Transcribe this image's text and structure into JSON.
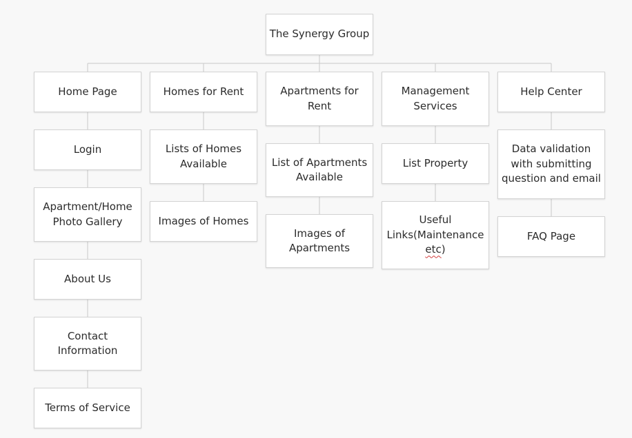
{
  "root": {
    "label": "The Synergy Group"
  },
  "columns": [
    {
      "header": "Home Page",
      "children": [
        "Login",
        "Apartment/Home\nPhoto Gallery",
        "About Us",
        "Contact\nInformation",
        "Terms of Service"
      ]
    },
    {
      "header": "Homes for Rent",
      "children": [
        "Lists of Homes\nAvailable",
        "Images of Homes"
      ]
    },
    {
      "header": "Apartments for\nRent",
      "children": [
        "List of Apartments\nAvailable",
        "Images of\nApartments"
      ]
    },
    {
      "header": "Management\nServices",
      "children": [
        "List Property",
        "Useful\nLinks(Maintenance\n",
        "FAQ Page"
      ]
    },
    {
      "header": "Help Center",
      "children": [
        "Data validation\nwith submitting\nquestion and email",
        "FAQ Page"
      ]
    }
  ],
  "misc": {
    "useful_links_tail": "etc",
    "useful_links_close": ")"
  },
  "colors": {
    "background": "#f8f8f8",
    "node_border": "#d3d3d3",
    "connector": "#c9c9c9",
    "text": "#2b2b2b",
    "spell_underline": "#d23b3b"
  }
}
